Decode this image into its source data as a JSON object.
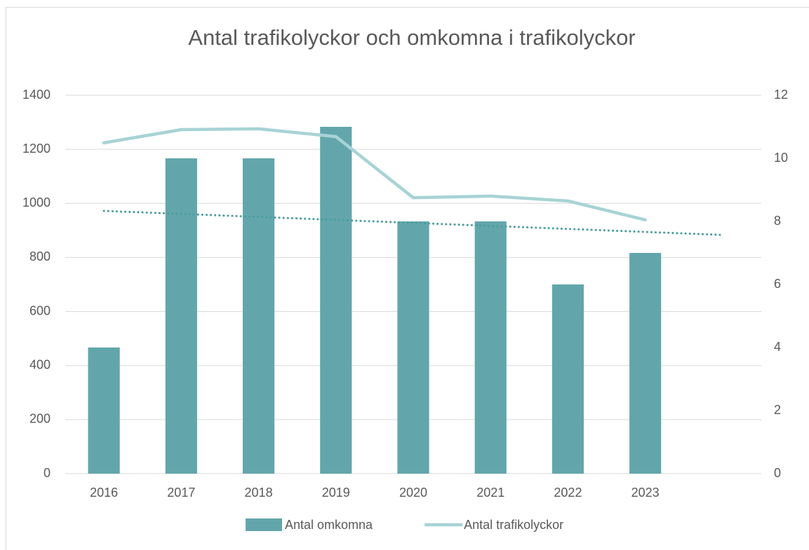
{
  "chart_data": {
    "type": "bar-line",
    "title": "Antal trafikolyckor och omkomna i trafikolyckor",
    "categories": [
      "2016",
      "2017",
      "2018",
      "2019",
      "2020",
      "2021",
      "2022",
      "2023"
    ],
    "series": [
      {
        "name": "Antal omkomna",
        "type": "bar",
        "axis": "y2",
        "color": "#62a6ab",
        "values": [
          4,
          10,
          10,
          11,
          8,
          8,
          6,
          7
        ],
        "trendline": "linear",
        "trendline_forward": 1,
        "trendline_color": "#4b9c9c"
      },
      {
        "name": "Antal trafikolyckor",
        "type": "line",
        "axis": "y",
        "color": "#a7d3d6",
        "values": [
          1224,
          1273,
          1276,
          1247,
          1021,
          1027,
          1009,
          939
        ]
      }
    ],
    "ylim": [
      0,
      1400
    ],
    "yticks": [
      0,
      200,
      400,
      600,
      800,
      1000,
      1200,
      1400
    ],
    "y2lim": [
      0,
      12
    ],
    "y2ticks": [
      0,
      2,
      4,
      6,
      8,
      10,
      12
    ],
    "grid": true,
    "legend": "bottom"
  }
}
